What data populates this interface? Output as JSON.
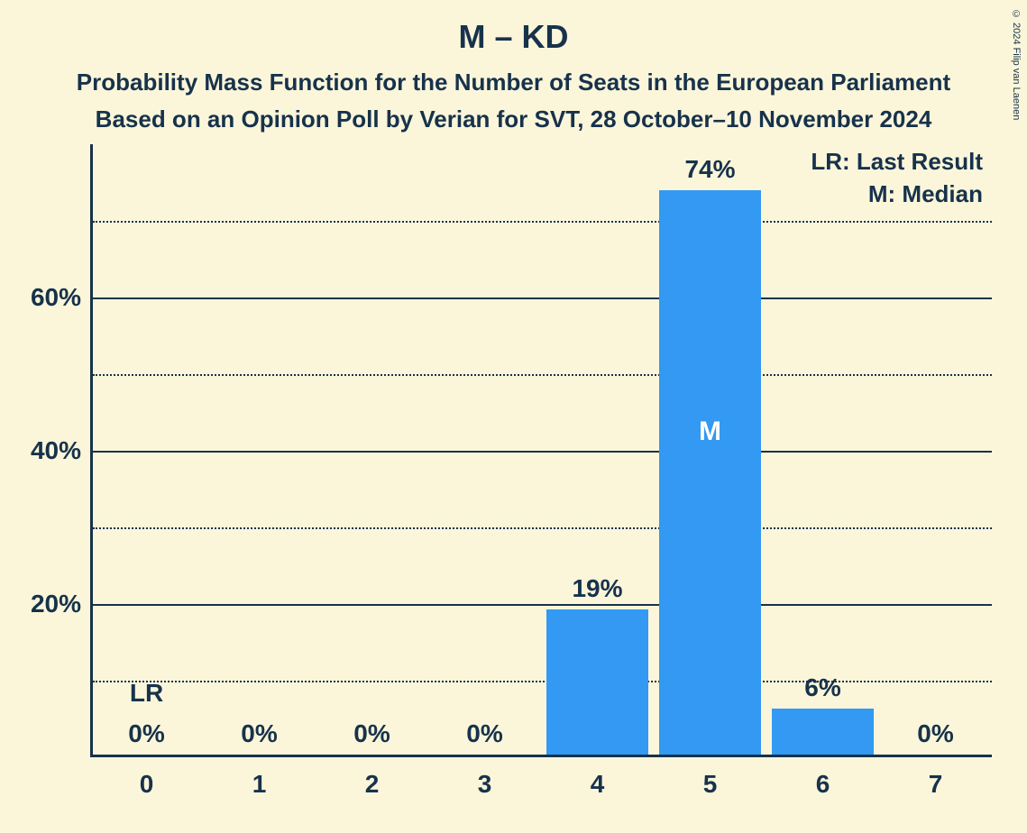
{
  "title": "M – KD",
  "subtitle1": "Probability Mass Function for the Number of Seats in the European Parliament",
  "subtitle2": "Based on an Opinion Poll by Verian for SVT, 28 October–10 November 2024",
  "copyright": "© 2024 Filip van Laenen",
  "colors": {
    "background": "#fbf6da",
    "text": "#17324b",
    "bar": "#3399f2",
    "median_text": "#ffffff"
  },
  "typography": {
    "title_fontsize": 36,
    "subtitle_fontsize": 26,
    "axis_label_fontsize": 28,
    "legend_fontsize": 26
  },
  "chart": {
    "type": "bar",
    "categories": [
      "0",
      "1",
      "2",
      "3",
      "4",
      "5",
      "6",
      "7"
    ],
    "values": [
      0,
      0,
      0,
      0,
      19,
      74,
      6,
      0
    ],
    "value_labels": [
      "0%",
      "0%",
      "0%",
      "0%",
      "19%",
      "74%",
      "6%",
      "0%"
    ],
    "bar_width_ratio": 0.9,
    "y_max": 80,
    "y_ticks_major": [
      20,
      40,
      60
    ],
    "y_ticks_minor": [
      10,
      30,
      50,
      70
    ],
    "y_tick_labels": {
      "20": "20%",
      "40": "40%",
      "60": "60%"
    },
    "last_result_index": 0,
    "median_index": 5,
    "lr_marker": "LR",
    "median_marker": "M"
  },
  "legend": {
    "lr": "LR: Last Result",
    "median": "M: Median"
  }
}
